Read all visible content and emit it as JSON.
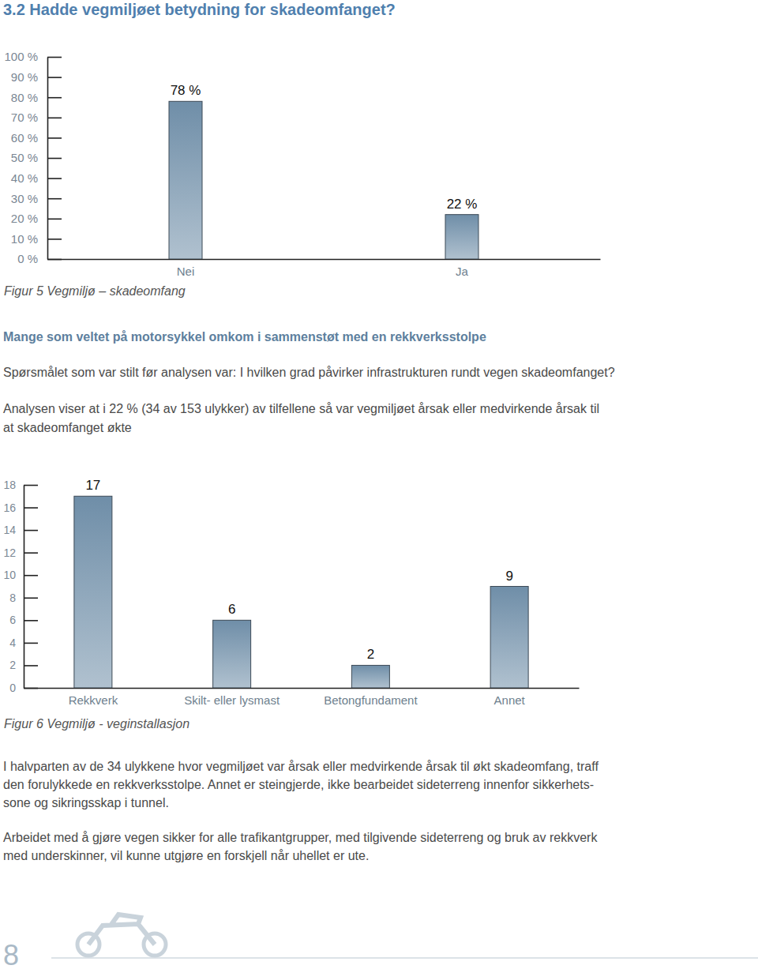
{
  "document": {
    "heading": "3.2 Hadde vegmiljøet betydning for skadeomfanget?",
    "subheading": "Mange som veltet på motorsykkel omkom i sammenstøt med en rekkverksstolpe",
    "question": "Spørsmålet som var stilt før analysen var: I hvilken grad påvirker infrastrukturen rundt vegen skadeomfanget?",
    "paragraphs": [
      [
        "Analysen viser at i 22 % (34 av 153 ulykker) av tilfellene så var vegmiljøet årsak eller medvirkende årsak til",
        "at skadeomfanget økte"
      ],
      [
        "I halvparten av de 34 ulykkene hvor vegmiljøet var årsak eller medvirkende årsak til økt skadeomfang, traff",
        "den forulykkede en rekkverksstolpe. Annet er steingjerde, ikke bearbeidet sideterreng innenfor sikkerhets-",
        "sone og sikringsskap i tunnel."
      ],
      [
        "Arbeidet med å gjøre vegen sikker for alle trafikantgrupper, med tilgivende sideterreng og bruk av rekkverk",
        "med underskinner, vil kunne utgjøre en forskjell når uhellet er ute."
      ]
    ],
    "page_number": "8"
  },
  "chart_data": [
    {
      "type": "bar",
      "title": "Figur 5 Vegmiljø – skadeomfang",
      "categories": [
        "Nei",
        "Ja"
      ],
      "values": [
        78,
        22
      ],
      "value_labels": [
        "78 %",
        "22 %"
      ],
      "data_labels": true,
      "color": "#6f8ea8",
      "ylim": [
        0,
        100
      ],
      "yticks": [
        {
          "value": 0,
          "label": "0 %"
        },
        {
          "value": 10,
          "label": "10 %"
        },
        {
          "value": 20,
          "label": "20 %"
        },
        {
          "value": 30,
          "label": "30 %"
        },
        {
          "value": 40,
          "label": "40 %"
        },
        {
          "value": 50,
          "label": "50 %"
        },
        {
          "value": 60,
          "label": "60 %"
        },
        {
          "value": 70,
          "label": "70 %"
        },
        {
          "value": 80,
          "label": "80 %"
        },
        {
          "value": 90,
          "label": "90 %"
        },
        {
          "value": 100,
          "label": "100 %"
        }
      ]
    },
    {
      "type": "bar",
      "title": "Figur 6 Vegmiljø - veginstallasjon",
      "categories": [
        "Rekkverk",
        "Skilt- eller lysmast",
        "Betongfundament",
        "Annet"
      ],
      "values": [
        17,
        6,
        2,
        9
      ],
      "data_labels": true,
      "color": "#6f8ea8",
      "ylim": [
        0,
        18
      ],
      "yticks": [
        0,
        2,
        4,
        6,
        8,
        10,
        12,
        14,
        16,
        18
      ]
    }
  ]
}
